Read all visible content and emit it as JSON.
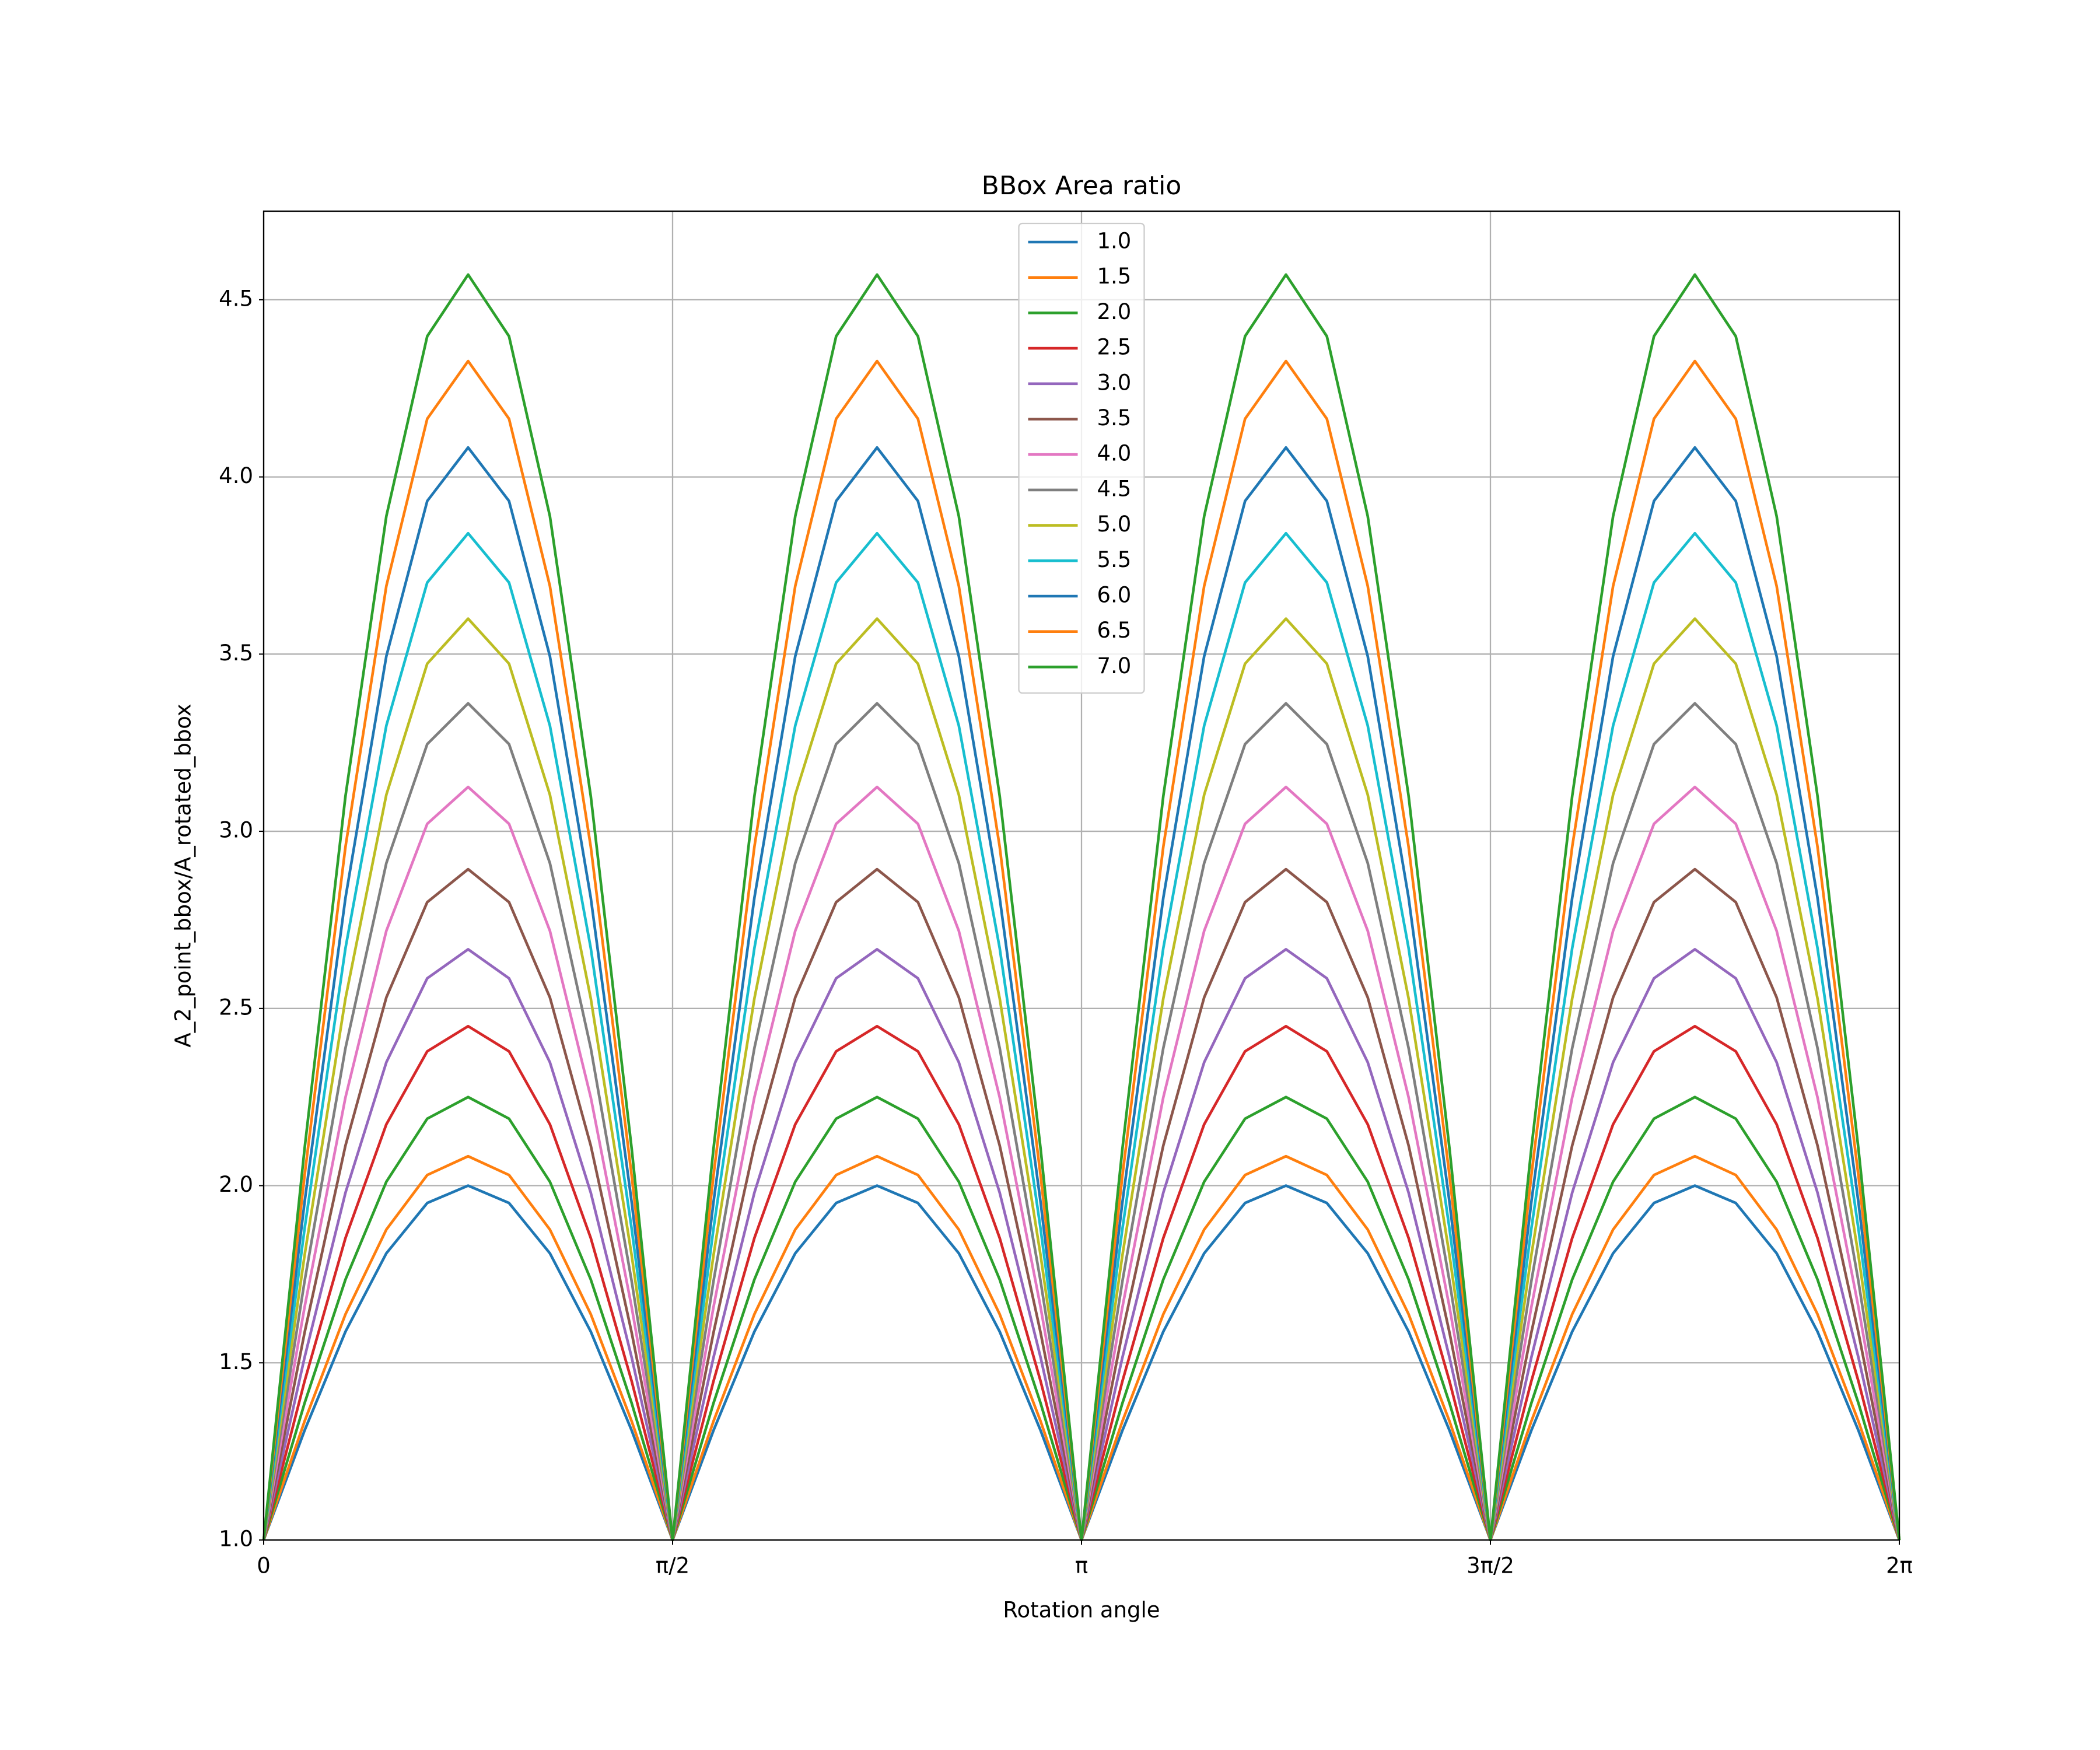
{
  "chart_data": {
    "type": "line",
    "title": "BBox Area ratio",
    "x_label": "Rotation angle",
    "y_label": "A_2_point_bbox/A_rotated_bbox",
    "x": [
      0,
      0.1571,
      0.3142,
      0.4712,
      0.6283,
      0.7854,
      0.9425,
      1.0996,
      1.2566,
      1.4137,
      1.5708,
      1.7279,
      1.885,
      2.042,
      2.1991,
      2.3562,
      2.5133,
      2.6704,
      2.8274,
      2.9845,
      3.1416,
      3.2987,
      3.4558,
      3.6128,
      3.7699,
      3.927,
      4.0841,
      4.2412,
      4.3982,
      4.5553,
      4.7124,
      4.8695,
      5.0265,
      5.1836,
      5.3407,
      5.4978,
      5.6549,
      5.8119,
      5.969,
      6.1261,
      6.2832
    ],
    "series": [
      {
        "name": "1.0",
        "color": "#1f77b4",
        "values": [
          1,
          1.309,
          1.588,
          1.809,
          1.951,
          2,
          1.951,
          1.809,
          1.588,
          1.309,
          1,
          1.309,
          1.588,
          1.809,
          1.951,
          2,
          1.951,
          1.809,
          1.588,
          1.309,
          1,
          1.309,
          1.588,
          1.809,
          1.951,
          2,
          1.951,
          1.809,
          1.588,
          1.309,
          1,
          1.309,
          1.588,
          1.809,
          1.951,
          2,
          1.951,
          1.809,
          1.588,
          1.309,
          1
        ]
      },
      {
        "name": "1.5",
        "color": "#ff7f0e",
        "values": [
          1,
          1.335,
          1.637,
          1.876,
          2.03,
          2.083,
          2.03,
          1.876,
          1.637,
          1.335,
          1,
          1.335,
          1.637,
          1.876,
          2.03,
          2.083,
          2.03,
          1.876,
          1.637,
          1.335,
          1,
          1.335,
          1.637,
          1.876,
          2.03,
          2.083,
          2.03,
          1.876,
          1.637,
          1.335,
          1,
          1.335,
          1.637,
          1.876,
          2.03,
          2.083,
          2.03,
          1.876,
          1.637,
          1.335,
          1
        ]
      },
      {
        "name": "2.0",
        "color": "#2ca02c",
        "values": [
          1,
          1.386,
          1.735,
          2.011,
          2.189,
          2.25,
          2.189,
          2.011,
          1.735,
          1.386,
          1,
          1.386,
          1.735,
          2.011,
          2.189,
          2.25,
          2.189,
          2.011,
          1.735,
          1.386,
          1,
          1.386,
          1.735,
          2.011,
          2.189,
          2.25,
          2.189,
          2.011,
          1.735,
          1.386,
          1,
          1.386,
          1.735,
          2.011,
          2.189,
          2.25,
          2.189,
          2.011,
          1.735,
          1.386,
          1
        ]
      },
      {
        "name": "2.5",
        "color": "#d62728",
        "values": [
          1,
          1.448,
          1.852,
          2.173,
          2.379,
          2.45,
          2.379,
          2.173,
          1.852,
          1.448,
          1,
          1.448,
          1.852,
          2.173,
          2.379,
          2.45,
          2.379,
          2.173,
          1.852,
          1.448,
          1,
          1.448,
          1.852,
          2.173,
          2.379,
          2.45,
          2.379,
          2.173,
          1.852,
          1.448,
          1,
          1.448,
          1.852,
          2.173,
          2.379,
          2.45,
          2.379,
          2.173,
          1.852,
          1.448,
          1
        ]
      },
      {
        "name": "3.0",
        "color": "#9467bd",
        "values": [
          1,
          1.515,
          1.98,
          2.348,
          2.585,
          2.667,
          2.585,
          2.348,
          1.98,
          1.515,
          1,
          1.515,
          1.98,
          2.348,
          2.585,
          2.667,
          2.585,
          2.348,
          1.98,
          1.515,
          1,
          1.515,
          1.98,
          2.348,
          2.585,
          2.667,
          2.585,
          2.348,
          1.98,
          1.515,
          1,
          1.515,
          1.98,
          2.348,
          2.585,
          2.667,
          2.585,
          2.348,
          1.98,
          1.515,
          1
        ]
      },
      {
        "name": "3.5",
        "color": "#8c564b",
        "values": [
          1,
          1.585,
          2.113,
          2.531,
          2.8,
          2.893,
          2.8,
          2.531,
          2.113,
          1.585,
          1,
          1.585,
          2.113,
          2.531,
          2.8,
          2.893,
          2.8,
          2.531,
          2.113,
          1.585,
          1,
          1.585,
          2.113,
          2.531,
          2.8,
          2.893,
          2.8,
          2.531,
          2.113,
          1.585,
          1,
          1.585,
          2.113,
          2.531,
          2.8,
          2.893,
          2.8,
          2.531,
          2.113,
          1.585,
          1
        ]
      },
      {
        "name": "4.0",
        "color": "#e377c2",
        "values": [
          1,
          1.657,
          2.249,
          2.719,
          3.021,
          3.125,
          3.021,
          2.719,
          2.249,
          1.657,
          1,
          1.657,
          2.249,
          2.719,
          3.021,
          3.125,
          3.021,
          2.719,
          2.249,
          1.657,
          1,
          1.657,
          2.249,
          2.719,
          3.021,
          3.125,
          3.021,
          2.719,
          2.249,
          1.657,
          1,
          1.657,
          2.249,
          2.719,
          3.021,
          3.125,
          3.021,
          2.719,
          2.249,
          1.657,
          1
        ]
      },
      {
        "name": "4.5",
        "color": "#7f7f7f",
        "values": [
          1,
          1.73,
          2.388,
          2.91,
          3.246,
          3.361,
          3.246,
          2.91,
          2.388,
          1.73,
          1,
          1.73,
          2.388,
          2.91,
          3.246,
          3.361,
          3.246,
          2.91,
          2.388,
          1.73,
          1,
          1.73,
          2.388,
          2.91,
          3.246,
          3.361,
          3.246,
          2.91,
          2.388,
          1.73,
          1,
          1.73,
          2.388,
          2.91,
          3.246,
          3.361,
          3.246,
          2.91,
          2.388,
          1.73,
          1
        ]
      },
      {
        "name": "5.0",
        "color": "#bcbd22",
        "values": [
          1,
          1.803,
          2.528,
          3.103,
          3.473,
          3.6,
          3.473,
          3.103,
          2.528,
          1.803,
          1,
          1.803,
          2.528,
          3.103,
          3.473,
          3.6,
          3.473,
          3.103,
          2.528,
          1.803,
          1,
          1.803,
          2.528,
          3.103,
          3.473,
          3.6,
          3.473,
          3.103,
          2.528,
          1.803,
          1,
          1.803,
          2.528,
          3.103,
          3.473,
          3.6,
          3.473,
          3.103,
          2.528,
          1.803,
          1
        ]
      },
      {
        "name": "5.5",
        "color": "#17becf",
        "values": [
          1,
          1.878,
          2.67,
          3.298,
          3.702,
          3.841,
          3.702,
          3.298,
          2.67,
          1.878,
          1,
          1.878,
          2.67,
          3.298,
          3.702,
          3.841,
          3.702,
          3.298,
          2.67,
          1.878,
          1,
          1.878,
          2.67,
          3.298,
          3.702,
          3.841,
          3.702,
          3.298,
          2.67,
          1.878,
          1,
          1.878,
          2.67,
          3.298,
          3.702,
          3.841,
          3.702,
          3.298,
          2.67,
          1.878,
          1
        ]
      },
      {
        "name": "6.0",
        "color": "#1f77b4",
        "values": [
          1,
          1.953,
          2.812,
          3.494,
          3.932,
          4.083,
          3.932,
          3.494,
          2.812,
          1.953,
          1,
          1.953,
          2.812,
          3.494,
          3.932,
          4.083,
          3.932,
          3.494,
          2.812,
          1.953,
          1,
          1.953,
          2.812,
          3.494,
          3.932,
          4.083,
          3.932,
          3.494,
          2.812,
          1.953,
          1,
          1.953,
          2.812,
          3.494,
          3.932,
          4.083,
          3.932,
          3.494,
          2.812,
          1.953,
          1
        ]
      },
      {
        "name": "6.5",
        "color": "#ff7f0e",
        "values": [
          1,
          2.028,
          2.956,
          3.692,
          4.164,
          4.327,
          4.164,
          3.692,
          2.956,
          2.028,
          1,
          2.028,
          2.956,
          3.692,
          4.164,
          4.327,
          4.164,
          3.692,
          2.956,
          2.028,
          1,
          2.028,
          2.956,
          3.692,
          4.164,
          4.327,
          4.164,
          3.692,
          2.956,
          2.028,
          1,
          2.028,
          2.956,
          3.692,
          4.164,
          4.327,
          4.164,
          3.692,
          2.956,
          2.028,
          1
        ]
      },
      {
        "name": "7.0",
        "color": "#2ca02c",
        "values": [
          1,
          2.104,
          3.099,
          3.889,
          4.397,
          4.571,
          4.397,
          3.889,
          3.099,
          2.104,
          1,
          2.104,
          3.099,
          3.889,
          4.397,
          4.571,
          4.397,
          3.889,
          3.099,
          2.104,
          1,
          2.104,
          3.099,
          3.889,
          4.397,
          4.571,
          4.397,
          3.889,
          3.099,
          2.104,
          1,
          2.104,
          3.099,
          3.889,
          4.397,
          4.571,
          4.397,
          3.889,
          3.099,
          2.104,
          1
        ]
      }
    ],
    "xlim": [
      0,
      6.2832
    ],
    "xticks": [
      {
        "value": 0,
        "label": "0"
      },
      {
        "value": 1.5708,
        "label": "π/2"
      },
      {
        "value": 3.1416,
        "label": "π"
      },
      {
        "value": 4.7124,
        "label": "3π/2"
      },
      {
        "value": 6.2832,
        "label": "2π"
      }
    ],
    "ylim": [
      1,
      4.75
    ],
    "yticks": [
      {
        "value": 1,
        "label": "1.0"
      },
      {
        "value": 1.5,
        "label": "1.5"
      },
      {
        "value": 2,
        "label": "2.0"
      },
      {
        "value": 2.5,
        "label": "2.5"
      },
      {
        "value": 3,
        "label": "3.0"
      },
      {
        "value": 3.5,
        "label": "3.5"
      },
      {
        "value": 4,
        "label": "4.0"
      },
      {
        "value": 4.5,
        "label": "4.5"
      }
    ],
    "grid": true,
    "legend": "upper center"
  }
}
